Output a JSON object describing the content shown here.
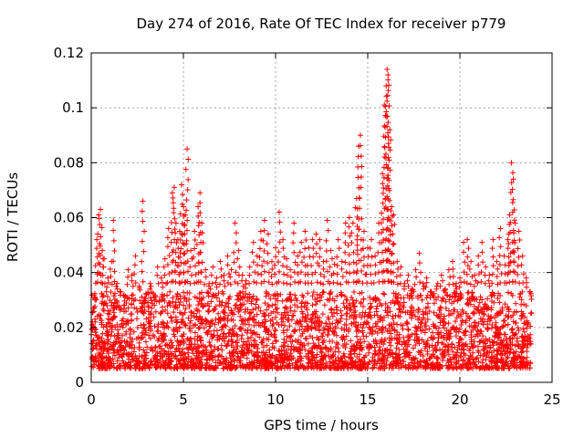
{
  "chart_data": {
    "type": "scatter",
    "title": "Day 274 of 2016, Rate Of TEC Index for receiver p779",
    "xlabel": "GPS time / hours",
    "ylabel": "ROTI / TECUs",
    "xlim": [
      0,
      25
    ],
    "ylim": [
      0,
      0.12
    ],
    "xticks": [
      0,
      5,
      10,
      15,
      20,
      25
    ],
    "xtick_labels": [
      "0",
      "5",
      "10",
      "15",
      "20",
      "25"
    ],
    "yticks": [
      0,
      0.02,
      0.04,
      0.06,
      0.08,
      0.1,
      0.12
    ],
    "ytick_labels": [
      "0",
      "0.02",
      "0.04",
      "0.06",
      "0.08",
      "0.1",
      "0.12"
    ],
    "grid": true,
    "marker": "+",
    "color": "#ff0000",
    "series": [
      {
        "name": "ROTI",
        "points": [
          [
            0.1,
            0.015
          ],
          [
            0.2,
            0.031
          ],
          [
            0.3,
            0.052
          ],
          [
            0.4,
            0.061
          ],
          [
            0.5,
            0.063
          ],
          [
            0.6,
            0.048
          ],
          [
            0.7,
            0.045
          ],
          [
            0.9,
            0.038
          ],
          [
            1.1,
            0.044
          ],
          [
            1.2,
            0.059
          ],
          [
            1.4,
            0.036
          ],
          [
            1.6,
            0.033
          ],
          [
            1.8,
            0.028
          ],
          [
            2.0,
            0.041
          ],
          [
            2.2,
            0.039
          ],
          [
            2.4,
            0.046
          ],
          [
            2.6,
            0.035
          ],
          [
            2.8,
            0.066
          ],
          [
            3.0,
            0.032
          ],
          [
            3.2,
            0.036
          ],
          [
            3.4,
            0.031
          ],
          [
            3.6,
            0.042
          ],
          [
            3.8,
            0.038
          ],
          [
            4.0,
            0.045
          ],
          [
            4.2,
            0.056
          ],
          [
            4.4,
            0.069
          ],
          [
            4.5,
            0.071
          ],
          [
            4.6,
            0.058
          ],
          [
            4.7,
            0.052
          ],
          [
            4.8,
            0.055
          ],
          [
            4.9,
            0.072
          ],
          [
            5.0,
            0.064
          ],
          [
            5.1,
            0.061
          ],
          [
            5.2,
            0.085
          ],
          [
            5.4,
            0.048
          ],
          [
            5.6,
            0.055
          ],
          [
            5.8,
            0.064
          ],
          [
            5.9,
            0.069
          ],
          [
            6.0,
            0.058
          ],
          [
            6.2,
            0.041
          ],
          [
            6.4,
            0.036
          ],
          [
            6.6,
            0.042
          ],
          [
            6.8,
            0.038
          ],
          [
            7.0,
            0.044
          ],
          [
            7.2,
            0.039
          ],
          [
            7.4,
            0.046
          ],
          [
            7.6,
            0.041
          ],
          [
            7.8,
            0.058
          ],
          [
            8.0,
            0.048
          ],
          [
            8.2,
            0.039
          ],
          [
            8.4,
            0.037
          ],
          [
            8.6,
            0.042
          ],
          [
            8.8,
            0.051
          ],
          [
            9.0,
            0.046
          ],
          [
            9.2,
            0.055
          ],
          [
            9.4,
            0.059
          ],
          [
            9.6,
            0.054
          ],
          [
            9.8,
            0.044
          ],
          [
            10.0,
            0.049
          ],
          [
            10.2,
            0.062
          ],
          [
            10.4,
            0.052
          ],
          [
            10.6,
            0.045
          ],
          [
            10.8,
            0.041
          ],
          [
            11.0,
            0.058
          ],
          [
            11.2,
            0.046
          ],
          [
            11.4,
            0.051
          ],
          [
            11.6,
            0.055
          ],
          [
            11.8,
            0.049
          ],
          [
            12.0,
            0.052
          ],
          [
            12.2,
            0.054
          ],
          [
            12.4,
            0.052
          ],
          [
            12.6,
            0.044
          ],
          [
            12.8,
            0.059
          ],
          [
            13.0,
            0.048
          ],
          [
            13.2,
            0.043
          ],
          [
            13.4,
            0.052
          ],
          [
            13.6,
            0.044
          ],
          [
            13.8,
            0.058
          ],
          [
            14.0,
            0.06
          ],
          [
            14.2,
            0.058
          ],
          [
            14.4,
            0.067
          ],
          [
            14.5,
            0.086
          ],
          [
            14.6,
            0.09
          ],
          [
            14.8,
            0.055
          ],
          [
            15.0,
            0.049
          ],
          [
            15.2,
            0.052
          ],
          [
            15.4,
            0.046
          ],
          [
            15.6,
            0.058
          ],
          [
            15.8,
            0.076
          ],
          [
            15.9,
            0.101
          ],
          [
            16.0,
            0.108
          ],
          [
            16.05,
            0.114
          ],
          [
            16.1,
            0.112
          ],
          [
            16.2,
            0.092
          ],
          [
            16.3,
            0.064
          ],
          [
            16.4,
            0.061
          ],
          [
            16.6,
            0.044
          ],
          [
            16.8,
            0.042
          ],
          [
            17.0,
            0.036
          ],
          [
            17.2,
            0.039
          ],
          [
            17.4,
            0.034
          ],
          [
            17.6,
            0.041
          ],
          [
            17.8,
            0.047
          ],
          [
            18.0,
            0.036
          ],
          [
            18.2,
            0.038
          ],
          [
            18.4,
            0.033
          ],
          [
            18.6,
            0.031
          ],
          [
            18.8,
            0.036
          ],
          [
            19.0,
            0.039
          ],
          [
            19.2,
            0.034
          ],
          [
            19.4,
            0.041
          ],
          [
            19.6,
            0.044
          ],
          [
            19.8,
            0.036
          ],
          [
            20.0,
            0.038
          ],
          [
            20.2,
            0.051
          ],
          [
            20.4,
            0.052
          ],
          [
            20.6,
            0.044
          ],
          [
            20.8,
            0.039
          ],
          [
            21.0,
            0.046
          ],
          [
            21.2,
            0.051
          ],
          [
            21.4,
            0.042
          ],
          [
            21.6,
            0.039
          ],
          [
            21.8,
            0.052
          ],
          [
            22.0,
            0.044
          ],
          [
            22.2,
            0.056
          ],
          [
            22.4,
            0.046
          ],
          [
            22.6,
            0.052
          ],
          [
            22.7,
            0.061
          ],
          [
            22.8,
            0.08
          ],
          [
            22.9,
            0.074
          ],
          [
            23.0,
            0.058
          ],
          [
            23.2,
            0.055
          ],
          [
            23.4,
            0.046
          ],
          [
            23.6,
            0.038
          ],
          [
            23.8,
            0.033
          ]
        ]
      }
    ],
    "noise_band": {
      "description": "dense cloud of ROTI values across the whole day",
      "x_range": [
        0.0,
        23.9
      ],
      "typical_min": 0.005,
      "typical_max": 0.033
    }
  }
}
